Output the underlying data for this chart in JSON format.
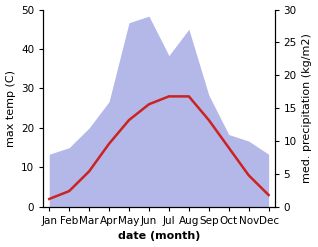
{
  "months": [
    "Jan",
    "Feb",
    "Mar",
    "Apr",
    "May",
    "Jun",
    "Jul",
    "Aug",
    "Sep",
    "Oct",
    "Nov",
    "Dec"
  ],
  "temp_max": [
    2,
    4,
    9,
    16,
    22,
    26,
    28,
    28,
    22,
    15,
    8,
    3
  ],
  "precip": [
    8,
    9,
    12,
    16,
    28,
    29,
    23,
    27,
    17,
    11,
    10,
    8
  ],
  "temp_ylim": [
    0,
    50
  ],
  "precip_ylim": [
    0,
    30
  ],
  "temp_color": "#cc2222",
  "precip_fill_color": "#b3b8e8",
  "xlabel": "date (month)",
  "ylabel_left": "max temp (C)",
  "ylabel_right": "med. precipitation (kg/m2)",
  "label_fontsize": 8,
  "tick_fontsize": 7.5,
  "linewidth": 1.8
}
